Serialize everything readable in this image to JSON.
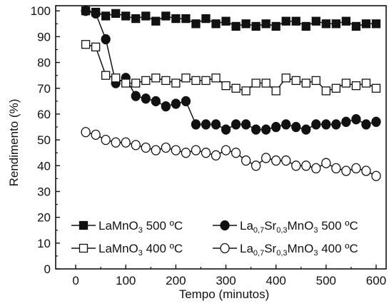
{
  "chart_data": {
    "type": "line",
    "title": "",
    "xlabel": "Tempo (minutos)",
    "ylabel": "Rendimento (%)",
    "xlim": [
      -40,
      620
    ],
    "ylim": [
      0,
      102
    ],
    "xticks": [
      0,
      100,
      200,
      300,
      400,
      500,
      600
    ],
    "yticks": [
      0,
      10,
      20,
      30,
      40,
      50,
      60,
      70,
      80,
      90,
      100
    ],
    "grid": false,
    "legend_position": "bottom-left",
    "x": [
      20,
      40,
      60,
      80,
      100,
      120,
      140,
      160,
      180,
      200,
      220,
      240,
      260,
      280,
      300,
      320,
      340,
      360,
      380,
      400,
      420,
      440,
      460,
      480,
      500,
      520,
      540,
      560,
      580,
      600
    ],
    "series": [
      {
        "name": "LaMnO3 500 ºC",
        "legend": {
          "base": "LaMnO",
          "sub": "3",
          "rest": " 500 ºC"
        },
        "marker": "square",
        "filled": true,
        "values": [
          100,
          99.5,
          98,
          99,
          98,
          97,
          98,
          96,
          98,
          97,
          97,
          95,
          97,
          95,
          96,
          94,
          95,
          94,
          95,
          94,
          96,
          96,
          94,
          96,
          95,
          95,
          96,
          94,
          95,
          95
        ]
      },
      {
        "name": "La0,7Sr0,3MnO3 500 ºC",
        "legend": {
          "base": "La",
          "sub": "0,7",
          "mid": "Sr",
          "sub2": "0,3",
          "base2": "MnO",
          "sub3": "3",
          "rest": " 500 ºC"
        },
        "marker": "circle",
        "filled": true,
        "values": [
          100,
          99,
          89,
          72,
          74,
          67,
          66,
          65,
          63,
          64,
          65,
          56,
          56,
          56,
          54,
          56,
          56,
          54,
          54,
          55,
          56,
          55,
          54,
          56,
          56,
          56,
          57,
          58,
          56,
          57
        ]
      },
      {
        "name": "LaMnO3 400 ºC",
        "legend": {
          "base": "LaMnO",
          "sub": "3",
          "rest": " 400 ºC"
        },
        "marker": "square",
        "filled": false,
        "values": [
          87,
          86,
          75,
          74,
          72,
          72,
          73,
          74,
          73,
          72,
          74,
          73,
          73,
          74,
          71,
          70,
          69,
          72,
          72,
          69,
          74,
          73,
          72,
          73,
          69,
          70,
          72,
          71,
          72,
          70
        ]
      },
      {
        "name": "La0,7Sr0,3MnO3 400 ºC",
        "legend": {
          "base": "La",
          "sub": "0,7",
          "mid": "Sr",
          "sub2": "0,3",
          "base2": "MnO",
          "sub3": "3",
          "rest": " 400 ºC"
        },
        "marker": "circle",
        "filled": false,
        "values": [
          53,
          52,
          50,
          49,
          49,
          48,
          47,
          46,
          47,
          46,
          45,
          46,
          45,
          44,
          46,
          45,
          42,
          40,
          43,
          42,
          42,
          40,
          40,
          39,
          41,
          39,
          38,
          39,
          38,
          36
        ]
      }
    ]
  }
}
